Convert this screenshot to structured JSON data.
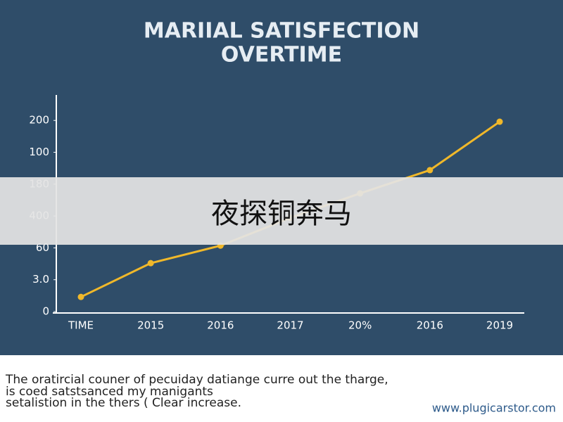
{
  "chart_data": {
    "type": "line",
    "title_lines": [
      "MARIIAL SATISFECTION",
      "OVERTIME"
    ],
    "categories": [
      "TIME",
      "2015",
      "2016",
      "2017",
      "20%",
      "2016",
      "2019"
    ],
    "values": [
      0.46,
      1.52,
      2.07,
      2.94,
      3.71,
      4.44,
      5.96
    ],
    "color": "#f0b82a",
    "ylim": [
      0,
      6.8
    ],
    "yticks": [
      0,
      1,
      2,
      3,
      4,
      5,
      6
    ],
    "ytick_labels": [
      "0",
      "3.0",
      "60",
      "400",
      "180",
      "100",
      "200"
    ]
  },
  "overlay": "夜探铜奔马",
  "caption": [
    "The oratircial couner of pecuiday datiange curre out the tharge,",
    "is coed satstsanced my manigants",
    "setalistion in the thers ( Clear increase."
  ],
  "watermark": "www.plugicarstor.com"
}
